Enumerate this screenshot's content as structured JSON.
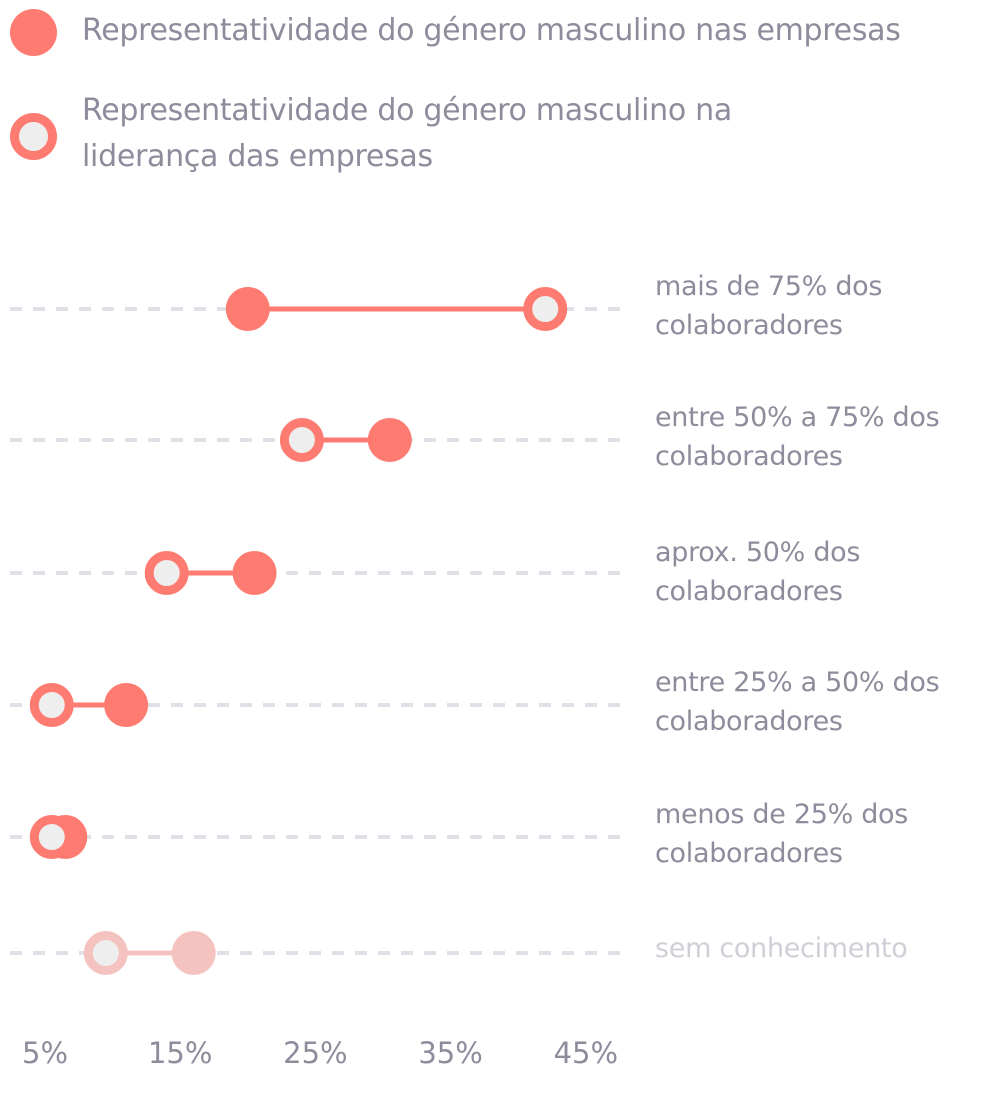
{
  "colors": {
    "accent": "#fd7b70",
    "accent_muted": "#f4c3bf",
    "hollow_fill": "#eeeeee",
    "gridline": "#e0e0e6",
    "text": "#8c8c9c",
    "text_muted": "#cfcfd7"
  },
  "chart_data": {
    "type": "dumbbell",
    "title": "",
    "xlabel": "",
    "ylabel": "",
    "xlim": [
      4,
      50
    ],
    "x_ticks": [
      5,
      15,
      25,
      35,
      45
    ],
    "x_tick_labels": [
      "5%",
      "15%",
      "25%",
      "35%",
      "45%"
    ],
    "grid": true,
    "legend_position": "top",
    "series": [
      {
        "name": "Representatividade do género masculino nas empresas",
        "marker": "filled"
      },
      {
        "name": "Representatividade do género masculino na liderança das empresas",
        "marker": "hollow"
      }
    ],
    "categories": [
      "mais de 75% dos colaboradores",
      "entre 50% a 75% dos colaboradores",
      "aprox. 50% dos colaboradores",
      "entre 25% a 50% dos colaboradores",
      "menos de 25% dos colaboradores",
      "sem conhecimento"
    ],
    "rows": [
      {
        "category": "mais de 75% dos colaboradores",
        "empresas": 20,
        "lideranca": 42,
        "muted": false
      },
      {
        "category": "entre 50% a 75% dos colaboradores",
        "empresas": 30.5,
        "lideranca": 24,
        "muted": false
      },
      {
        "category": "aprox. 50% dos colaboradores",
        "empresas": 20.5,
        "lideranca": 14,
        "muted": false
      },
      {
        "category": "entre 25% a 50% dos colaboradores",
        "empresas": 11,
        "lideranca": 5.5,
        "muted": false
      },
      {
        "category": "menos de 25% dos colaboradores",
        "empresas": 6.5,
        "lideranca": 5.5,
        "muted": false
      },
      {
        "category": "sem conhecimento",
        "empresas": 16,
        "lideranca": 9.5,
        "muted": true
      }
    ]
  }
}
